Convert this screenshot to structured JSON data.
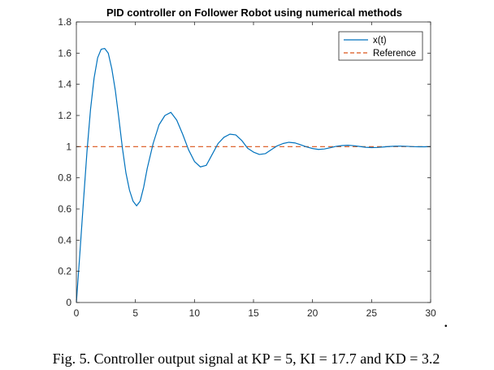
{
  "chart_data": {
    "type": "line",
    "title": "PID controller on Follower Robot using numerical methods",
    "xlabel": "",
    "ylabel": "",
    "xlim": [
      0,
      30
    ],
    "ylim": [
      0,
      1.8
    ],
    "xticks": [
      0,
      5,
      10,
      15,
      20,
      25,
      30
    ],
    "yticks": [
      0,
      0.2,
      0.4,
      0.6,
      0.8,
      1,
      1.2,
      1.4,
      1.6,
      1.8
    ],
    "xtick_labels": [
      "0",
      "5",
      "10",
      "15",
      "20",
      "25",
      "30"
    ],
    "ytick_labels": [
      "0",
      "0.2",
      "0.4",
      "0.6",
      "0.8",
      "1",
      "1.2",
      "1.4",
      "1.6",
      "1.8"
    ],
    "grid": false,
    "legend_position": "top-right",
    "series": [
      {
        "name": "x(t)",
        "color": "#0072BD",
        "style": "solid",
        "x": [
          0,
          0.3,
          0.6,
          0.9,
          1.2,
          1.5,
          1.8,
          2.1,
          2.4,
          2.7,
          3.0,
          3.3,
          3.6,
          3.9,
          4.2,
          4.5,
          4.8,
          5.1,
          5.4,
          5.7,
          6.0,
          6.5,
          7.0,
          7.5,
          8.0,
          8.5,
          9.0,
          9.5,
          10.0,
          10.5,
          11.0,
          11.5,
          12.0,
          12.5,
          13.0,
          13.5,
          14.0,
          14.5,
          15.0,
          15.5,
          16.0,
          16.5,
          17.0,
          17.5,
          18.0,
          18.5,
          19.0,
          19.5,
          20.0,
          20.5,
          21.0,
          21.5,
          22.0,
          22.5,
          23.0,
          23.5,
          24.0,
          24.5,
          25.0,
          25.5,
          26.0,
          26.5,
          27.0,
          27.5,
          28.0,
          28.5,
          29.0,
          29.5,
          30.0
        ],
        "y": [
          0.0,
          0.32,
          0.65,
          0.97,
          1.24,
          1.44,
          1.57,
          1.625,
          1.63,
          1.6,
          1.5,
          1.36,
          1.18,
          0.99,
          0.83,
          0.72,
          0.65,
          0.62,
          0.65,
          0.74,
          0.86,
          1.02,
          1.14,
          1.2,
          1.22,
          1.17,
          1.08,
          0.98,
          0.905,
          0.87,
          0.88,
          0.95,
          1.02,
          1.06,
          1.08,
          1.075,
          1.04,
          0.99,
          0.965,
          0.95,
          0.955,
          0.98,
          1.005,
          1.02,
          1.028,
          1.024,
          1.012,
          0.998,
          0.988,
          0.982,
          0.985,
          0.993,
          1.002,
          1.007,
          1.009,
          1.006,
          1.001,
          0.996,
          0.994,
          0.995,
          0.998,
          1.001,
          1.003,
          1.003,
          1.002,
          1.0,
          0.999,
          0.999,
          1.0
        ]
      },
      {
        "name": "Reference",
        "color": "#D95319",
        "style": "dashed",
        "x": [
          0,
          30
        ],
        "y": [
          1,
          1
        ]
      }
    ]
  },
  "caption": "Fig. 5.  Controller output signal at KP = 5, KI = 17.7 and KD = 3.2",
  "trailing_mark": "."
}
